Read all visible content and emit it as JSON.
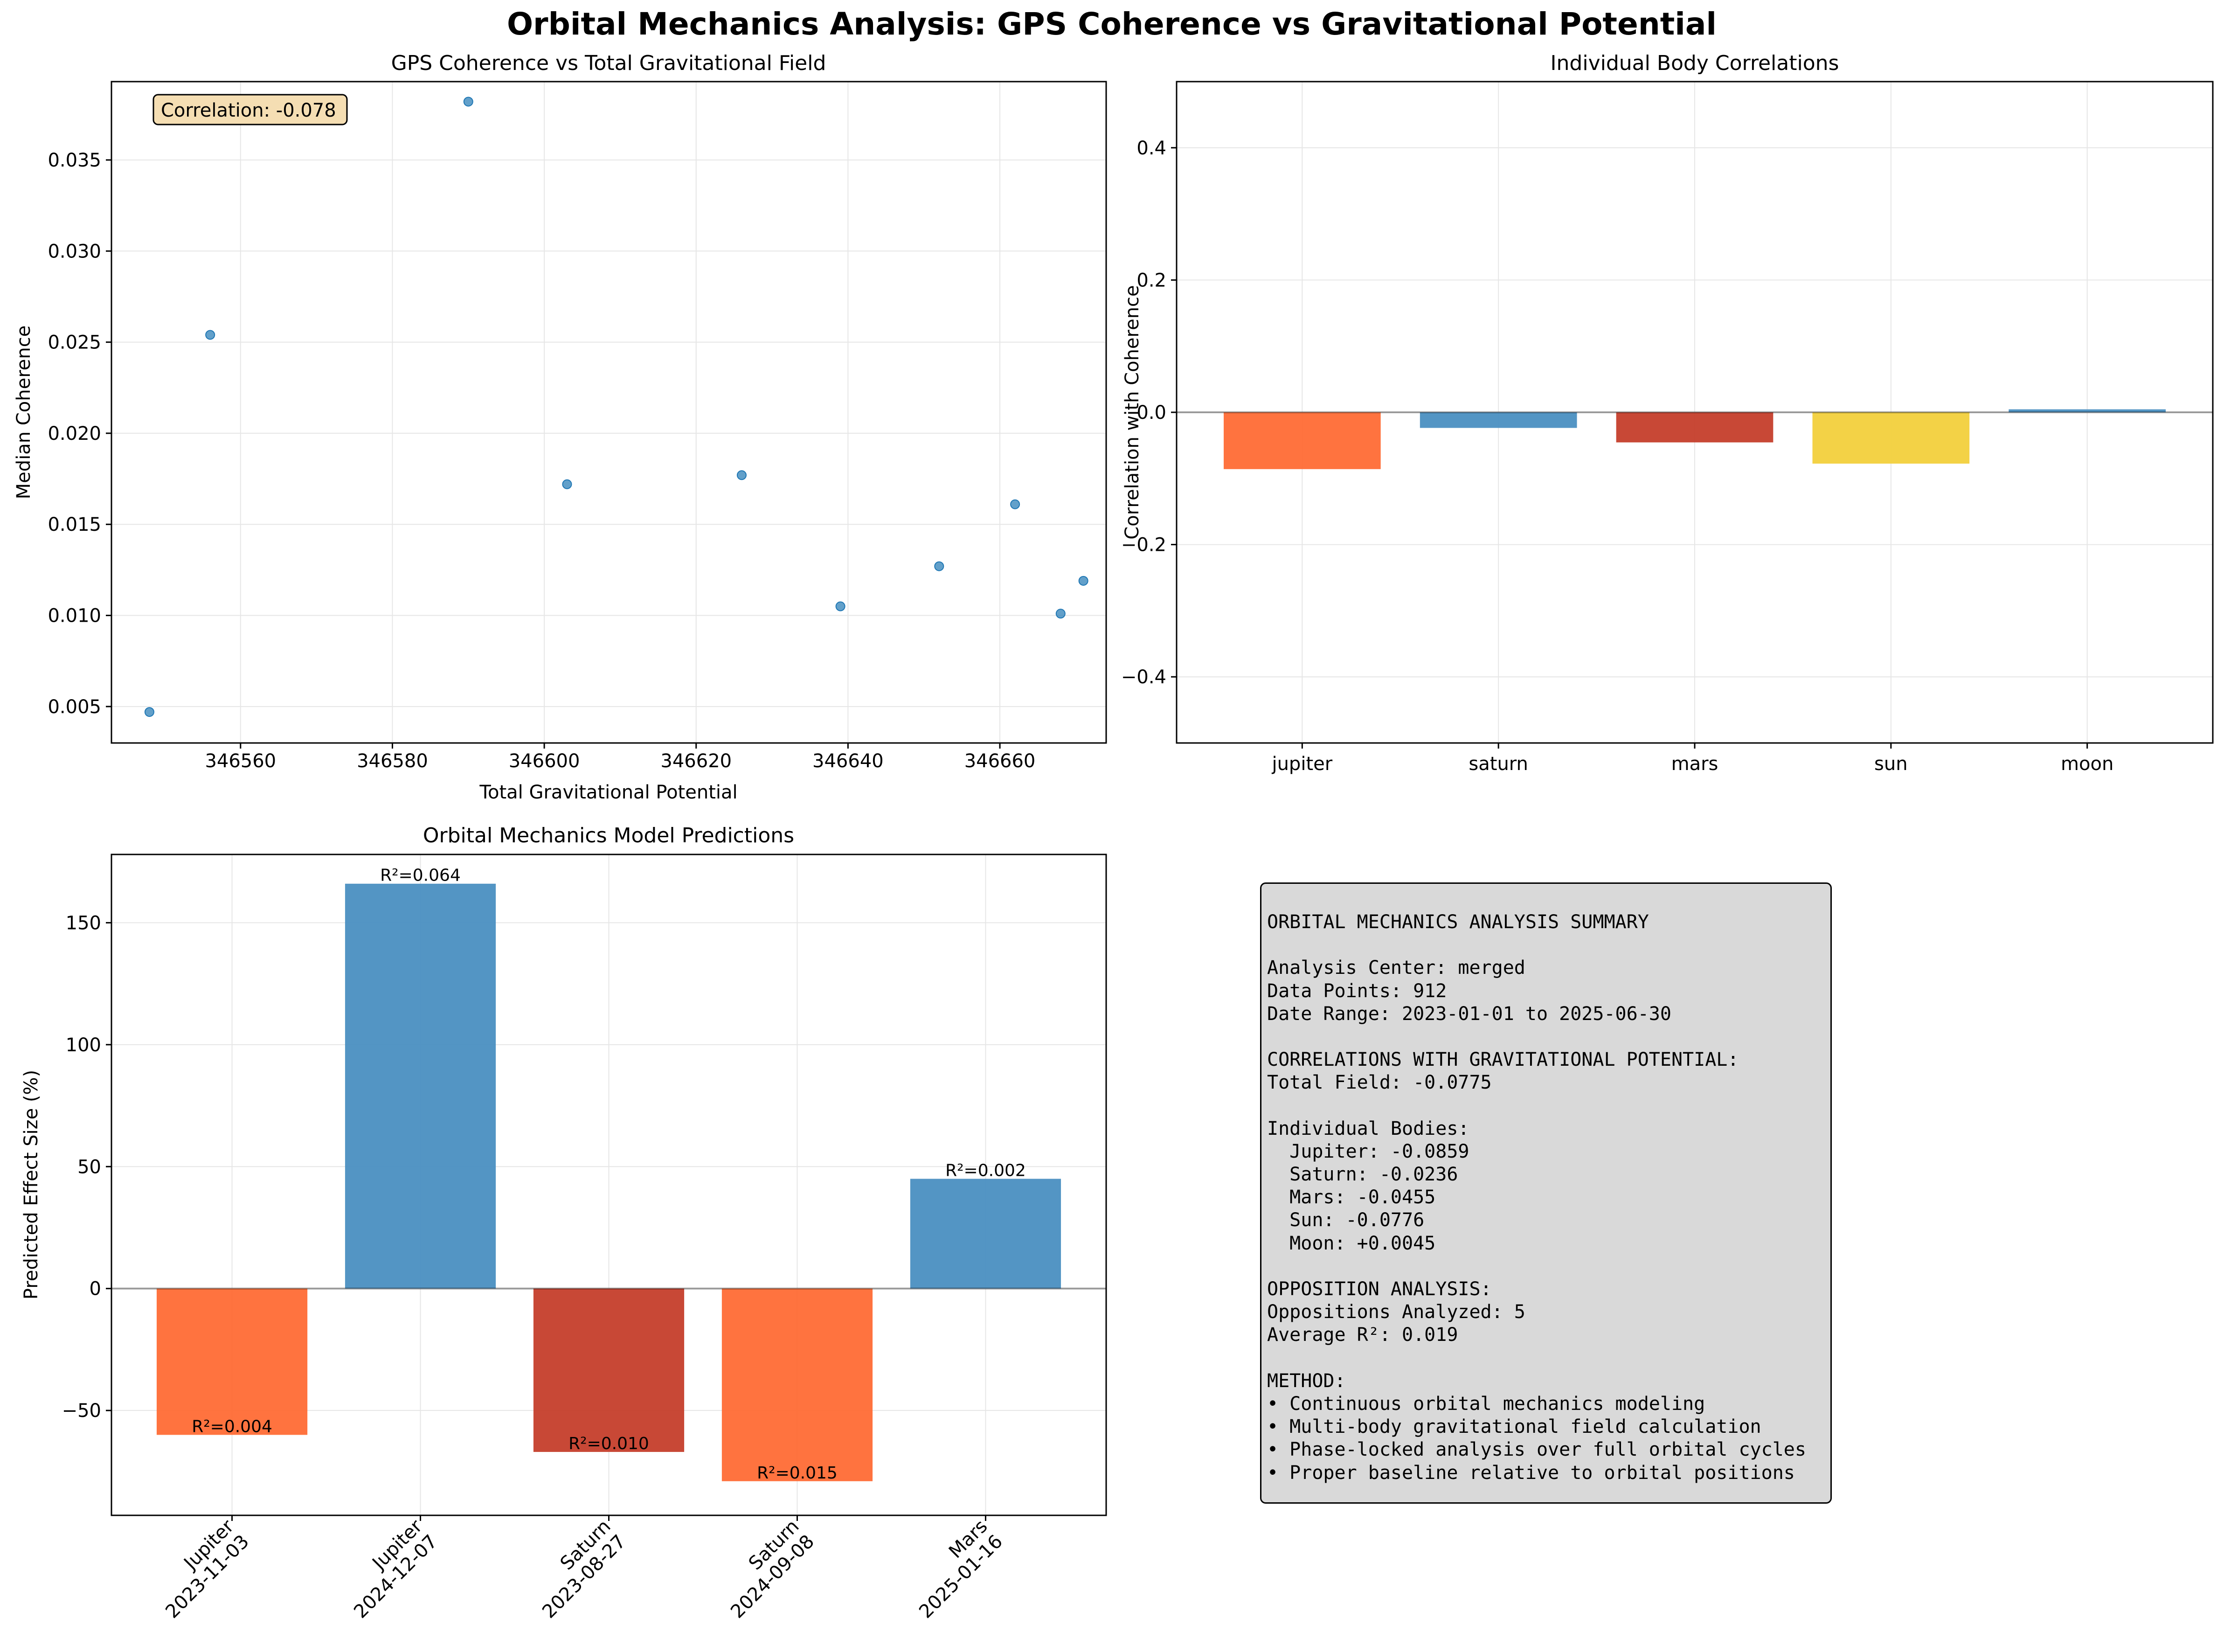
{
  "figure_title": "Orbital Mechanics Analysis: GPS Coherence vs Gravitational Potential",
  "chart_data": [
    {
      "type": "scatter",
      "title": "GPS Coherence vs Total Gravitational Field",
      "xlabel": "Total Gravitational Potential",
      "ylabel": "Median Coherence",
      "annotation": "Correlation: -0.078",
      "xlim": [
        346543,
        346674
      ],
      "ylim": [
        0.003,
        0.0393
      ],
      "xticks": [
        346560,
        346580,
        346600,
        346620,
        346640,
        346660
      ],
      "xtick_labels": [
        "346560",
        "346580",
        "346600",
        "346620",
        "346640",
        "346660"
      ],
      "yticks": [
        0.005,
        0.01,
        0.015,
        0.02,
        0.025,
        0.03,
        0.035
      ],
      "ytick_labels": [
        "0.005",
        "0.010",
        "0.015",
        "0.020",
        "0.025",
        "0.030",
        "0.035"
      ],
      "grid": true,
      "color": "#1f77b4",
      "points": [
        {
          "x": 346548,
          "y": 0.0047
        },
        {
          "x": 346556,
          "y": 0.0254
        },
        {
          "x": 346590,
          "y": 0.0382
        },
        {
          "x": 346603,
          "y": 0.0172
        },
        {
          "x": 346626,
          "y": 0.0177
        },
        {
          "x": 346639,
          "y": 0.0105
        },
        {
          "x": 346652,
          "y": 0.0127
        },
        {
          "x": 346662,
          "y": 0.0161
        },
        {
          "x": 346668,
          "y": 0.0101
        },
        {
          "x": 346671,
          "y": 0.0119
        }
      ]
    },
    {
      "type": "bar",
      "title": "Individual Body Correlations",
      "xlabel": "",
      "ylabel": "Correlation with Coherence",
      "categories": [
        "jupiter",
        "saturn",
        "mars",
        "sun",
        "moon"
      ],
      "values": [
        -0.0859,
        -0.0236,
        -0.0455,
        -0.0776,
        0.0045
      ],
      "colors": [
        "#ff6b35",
        "#4a8fc1",
        "#c53e2b",
        "#f2d03c",
        "#4a8fc1"
      ],
      "ylim": [
        -0.5,
        0.5
      ],
      "yticks": [
        -0.4,
        -0.2,
        0.0,
        0.2,
        0.4
      ],
      "ytick_labels": [
        "−0.4",
        "−0.2",
        "0.0",
        "0.2",
        "0.4"
      ],
      "grid": true
    },
    {
      "type": "bar",
      "title": "Orbital Mechanics Model Predictions",
      "xlabel": "",
      "ylabel": "Predicted Effect Size (%)",
      "categories": [
        [
          "Jupiter",
          "2023-11-03"
        ],
        [
          "Jupiter",
          "2024-12-07"
        ],
        [
          "Saturn",
          "2023-08-27"
        ],
        [
          "Saturn",
          "2024-09-08"
        ],
        [
          "Mars",
          "2025-01-16"
        ]
      ],
      "values": [
        -60,
        166,
        -67,
        -79,
        45
      ],
      "data_labels": [
        "R²=0.004",
        "R²=0.064",
        "R²=0.010",
        "R²=0.015",
        "R²=0.002"
      ],
      "colors": [
        "#ff6b35",
        "#4a8fc1",
        "#c53e2b",
        "#ff6b35",
        "#4a8fc1"
      ],
      "ylim": [
        -93,
        178
      ],
      "yticks": [
        -50,
        0,
        50,
        100,
        150
      ],
      "ytick_labels": [
        "−50",
        "0",
        "50",
        "100",
        "150"
      ],
      "grid": true
    }
  ],
  "summary_lines": [
    "ORBITAL MECHANICS ANALYSIS SUMMARY",
    "",
    "Analysis Center: merged",
    "Data Points: 912",
    "Date Range: 2023-01-01 to 2025-06-30",
    "",
    "CORRELATIONS WITH GRAVITATIONAL POTENTIAL:",
    "Total Field: -0.0775",
    "",
    "Individual Bodies:",
    "  Jupiter: -0.0859",
    "  Saturn: -0.0236",
    "  Mars: -0.0455",
    "  Sun: -0.0776",
    "  Moon: +0.0045",
    "",
    "OPPOSITION ANALYSIS:",
    "Oppositions Analyzed: 5",
    "Average R²: 0.019",
    "",
    "METHOD:",
    "• Continuous orbital mechanics modeling",
    "• Multi-body gravitational field calculation",
    "• Phase-locked analysis over full orbital cycles",
    "• Proper baseline relative to orbital positions"
  ]
}
